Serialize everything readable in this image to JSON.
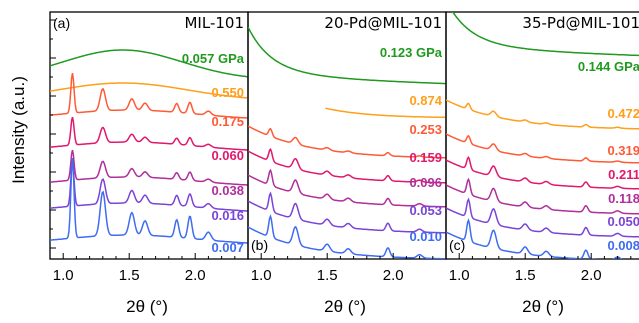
{
  "chart_data": [
    {
      "type": "line",
      "panel_letter": "(a)",
      "title": "MIL-101",
      "xlabel": "2θ (°)",
      "xlim": [
        0.9,
        2.4
      ],
      "xticks": [
        "1.0",
        "1.5",
        "2.0"
      ],
      "series": [
        {
          "name": "0.057 GPa",
          "color": "#1f9a1f"
        },
        {
          "name": "0.550",
          "color": "#ff9f1a"
        },
        {
          "name": "0.175",
          "color": "#ff5a36"
        },
        {
          "name": "0.060",
          "color": "#e0186e"
        },
        {
          "name": "0.038",
          "color": "#b02f9a"
        },
        {
          "name": "0.016",
          "color": "#7a44d8"
        },
        {
          "name": "0.007",
          "color": "#3f6cf0"
        }
      ]
    },
    {
      "type": "line",
      "panel_letter": "(b)",
      "title": "20-Pd@MIL-101",
      "xlabel": "2θ (°)",
      "xlim": [
        0.9,
        2.4
      ],
      "xticks": [
        "1.0",
        "1.5",
        "2.0"
      ],
      "series": [
        {
          "name": "0.123 GPa",
          "color": "#1f9a1f"
        },
        {
          "name": "0.874",
          "color": "#ff9f1a"
        },
        {
          "name": "0.253",
          "color": "#ff5a36"
        },
        {
          "name": "0.159",
          "color": "#e0186e"
        },
        {
          "name": "0.096",
          "color": "#b02f9a"
        },
        {
          "name": "0.053",
          "color": "#7a44d8"
        },
        {
          "name": "0.010",
          "color": "#3f6cf0"
        }
      ]
    },
    {
      "type": "line",
      "panel_letter": "(c)",
      "title": "35-Pd@MIL-101",
      "xlabel": "2θ (°)",
      "xlim": [
        0.9,
        2.4
      ],
      "xticks": [
        "1.0",
        "1.5",
        "2.0"
      ],
      "series": [
        {
          "name": "0.144 GPa",
          "color": "#1f9a1f"
        },
        {
          "name": "0.472",
          "color": "#ff9f1a"
        },
        {
          "name": "0.319",
          "color": "#ff5a36"
        },
        {
          "name": "0.211",
          "color": "#e0186e"
        },
        {
          "name": "0.118",
          "color": "#b02f9a"
        },
        {
          "name": "0.050",
          "color": "#7a44d8"
        },
        {
          "name": "0.008",
          "color": "#3f6cf0"
        }
      ]
    }
  ],
  "ylabel": "Intensity (a.u.)"
}
